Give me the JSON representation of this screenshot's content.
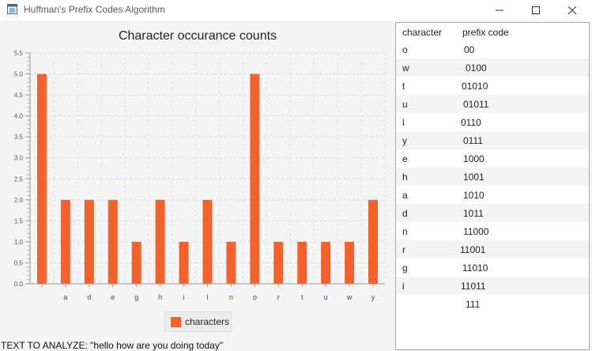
{
  "window": {
    "title": "Huffman's Prefix Codes Algorithm"
  },
  "legend": {
    "label": "characters"
  },
  "status": {
    "text": "TEXT TO ANALYZE: \"hello how are you doing today\""
  },
  "table": {
    "headers": {
      "character": "character",
      "code": "prefix code"
    },
    "rows": [
      {
        "character": "o",
        "code": "00"
      },
      {
        "character": "w",
        "code": "0100"
      },
      {
        "character": "t",
        "code": "01010"
      },
      {
        "character": "u",
        "code": "01011"
      },
      {
        "character": "l",
        "code": "0110"
      },
      {
        "character": "y",
        "code": "0111"
      },
      {
        "character": "e",
        "code": "1000"
      },
      {
        "character": "h",
        "code": "1001"
      },
      {
        "character": "a",
        "code": "1010"
      },
      {
        "character": "d",
        "code": "1011"
      },
      {
        "character": "n",
        "code": "11000"
      },
      {
        "character": "r",
        "code": "11001"
      },
      {
        "character": "g",
        "code": "11010"
      },
      {
        "character": "i",
        "code": "11011"
      },
      {
        "character": "",
        "code": "111"
      }
    ]
  },
  "chart_data": {
    "type": "bar",
    "title": "Character occurance counts",
    "xlabel": "",
    "ylabel": "",
    "categories": [
      " ",
      "a",
      "d",
      "e",
      "g",
      "h",
      "i",
      "l",
      "n",
      "o",
      "r",
      "t",
      "u",
      "w",
      "y"
    ],
    "series": [
      {
        "name": "characters",
        "values": [
          5,
          2,
          2,
          2,
          1,
          2,
          1,
          2,
          1,
          5,
          1,
          1,
          1,
          1,
          2
        ]
      }
    ],
    "ylim": [
      0,
      5.5
    ],
    "yticks": [
      "0.0",
      "0.5",
      "1.0",
      "1.5",
      "2.0",
      "2.5",
      "3.0",
      "3.5",
      "4.0",
      "4.5",
      "5.0",
      "5.5"
    ],
    "grid": true,
    "legend_position": "bottom",
    "bar_color": "#f3622d"
  }
}
